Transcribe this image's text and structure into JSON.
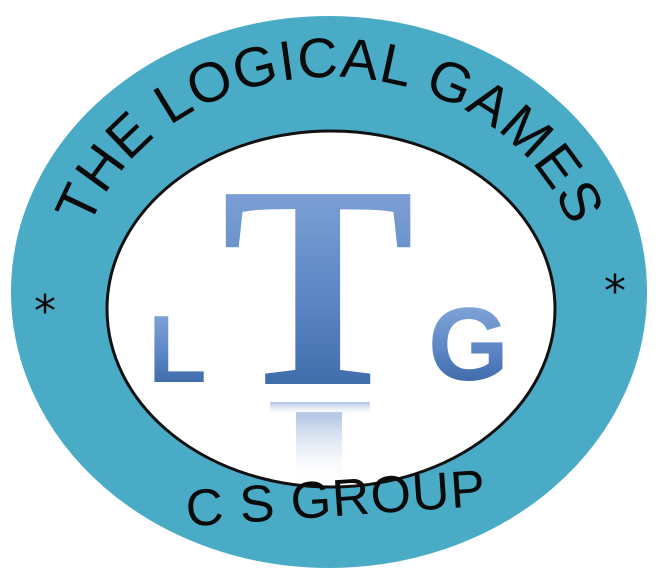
{
  "logo": {
    "top_arc_text": "THE LOGICAL GAMES",
    "bottom_text": "C S GROUP",
    "left_star": "*",
    "right_star": "*",
    "monogram": {
      "left": "L",
      "center": "T",
      "right": "G"
    }
  },
  "colors": {
    "ring": "#4aabc6",
    "ring_edge": "#ffffff",
    "inner_fill": "#ffffff",
    "inner_stroke": "#111111",
    "letter_light": "#7ea3d6",
    "letter_dark": "#2f5f9e",
    "text": "#0a0a0a"
  }
}
